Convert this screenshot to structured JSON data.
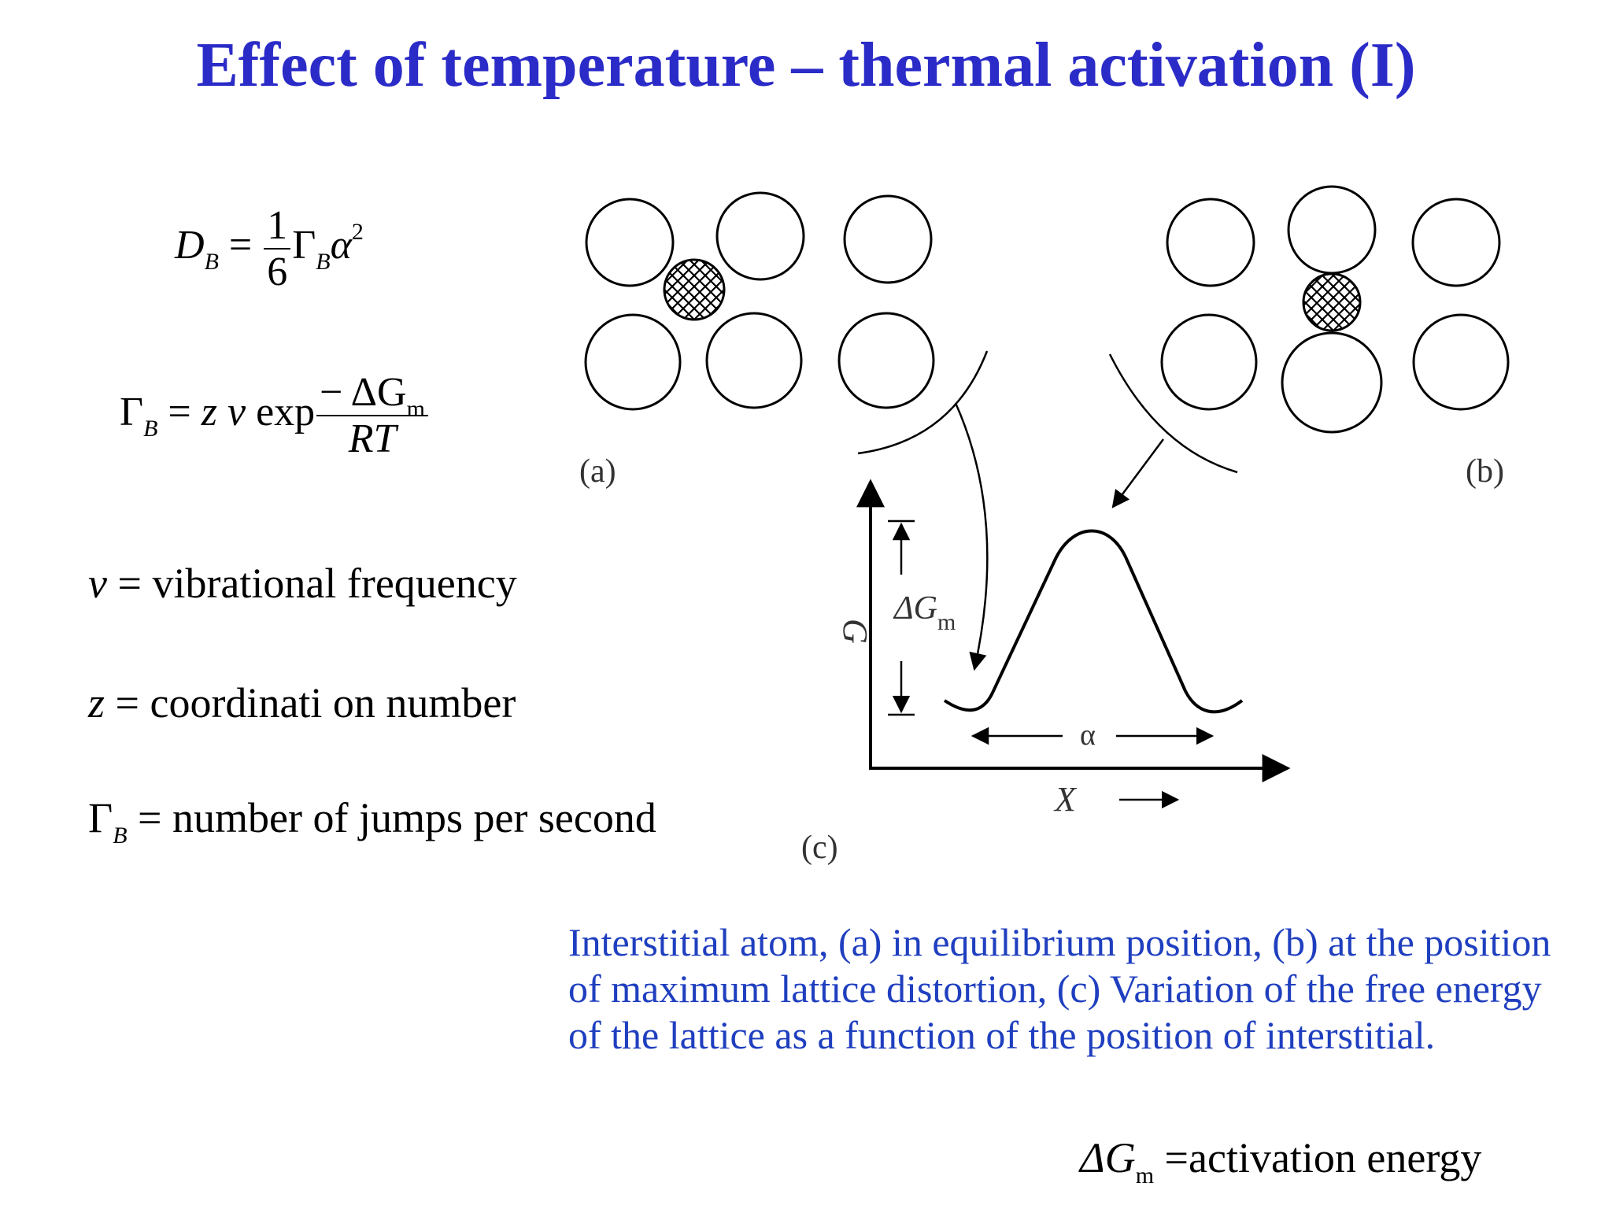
{
  "title": "Effect of temperature – thermal activation (I)",
  "eq1": {
    "lhs": "D",
    "lhs_sub": "B",
    "equals": "=",
    "num": "1",
    "den": "6",
    "gamma": "Γ",
    "gamma_sub": "B",
    "alpha": "α",
    "power": "2"
  },
  "eq2": {
    "lhs": "Γ",
    "lhs_sub": "B",
    "equals": "=",
    "z": "z",
    "nu": "ν",
    "exp": "exp",
    "num": "− ΔG",
    "num_sub": "m",
    "den": "RT"
  },
  "definitions": [
    {
      "symbol": "ν",
      "equals": "=",
      "text": "vibrational frequency"
    },
    {
      "symbol": "z",
      "equals": "=",
      "text": "coordinati on number"
    },
    {
      "symbol": "Γ",
      "symbol_sub": "B",
      "equals": "=",
      "text": "number of  jumps per second"
    }
  ],
  "figure": {
    "label_a": "(a)",
    "label_b": "(b)",
    "label_c": "(c)",
    "axis_g": "G",
    "axis_x": "X",
    "delta_g": "ΔG",
    "delta_g_sub": "m",
    "alpha_label": "α"
  },
  "caption": "Interstitial atom, (a) in equilibrium position, (b) at the position of maximum lattice distortion, (c) Variation of the free energy of the lattice as a function of the position of interstitial.",
  "activation": {
    "symbol": "ΔG",
    "symbol_sub": "m",
    "equals": "=",
    "text": "activation energy"
  }
}
